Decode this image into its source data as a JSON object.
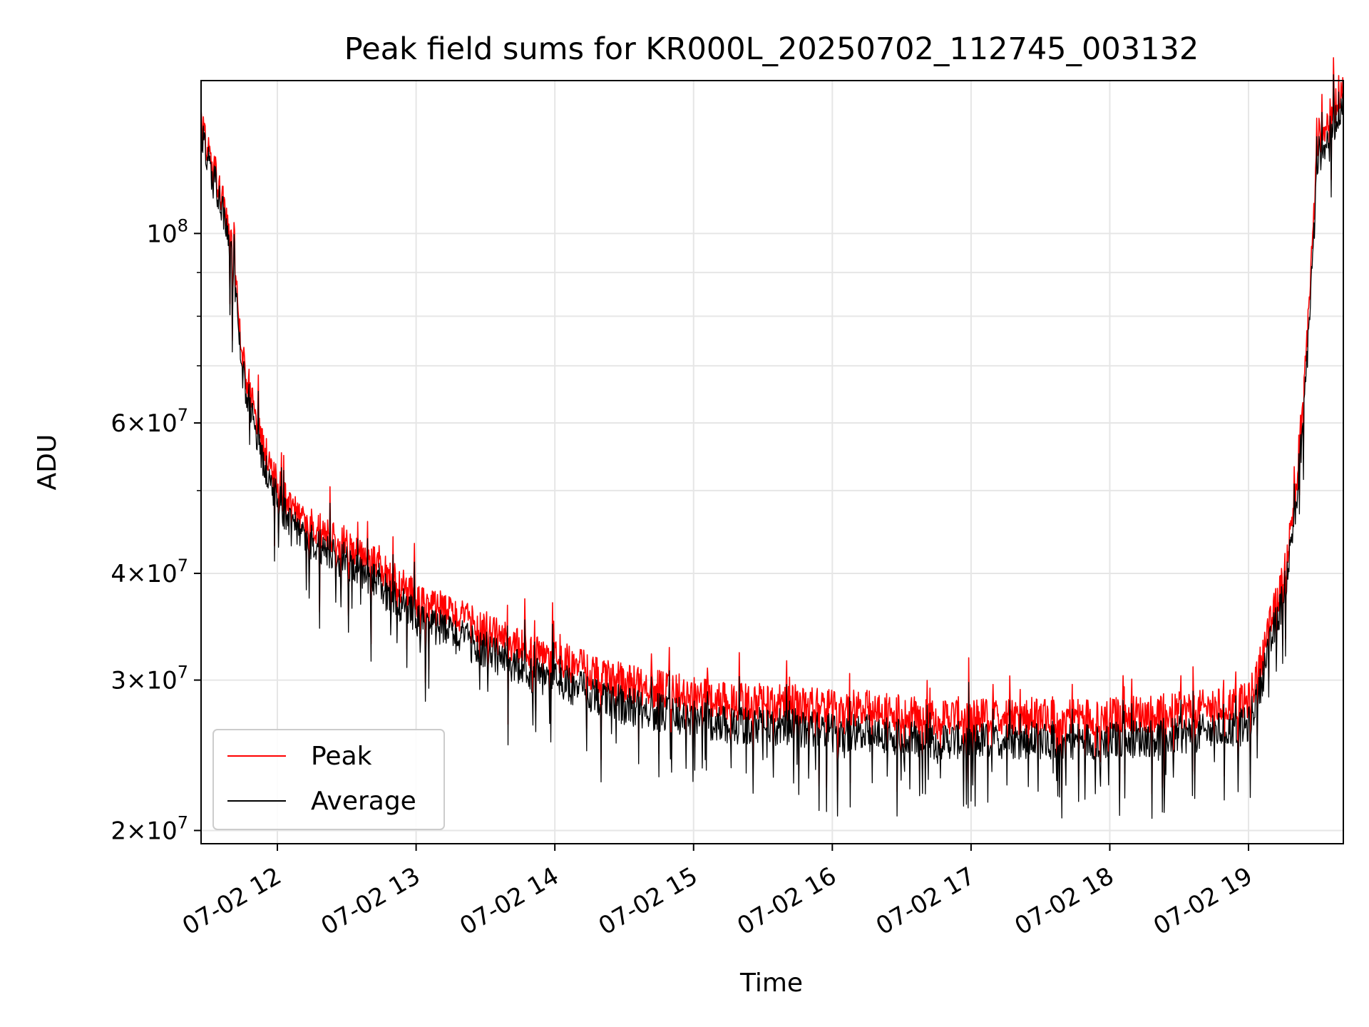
{
  "chart_data": {
    "type": "line",
    "title": "Peak field sums for KR000L_20250702_112745_003132",
    "xlabel": "Time",
    "ylabel": "ADU",
    "y_scale": "log",
    "x_range": [
      "07-02 11:27",
      "07-02 19:41"
    ],
    "ylim": [
      19300000,
      151000000
    ],
    "x_ticks": [
      {
        "time": "07-02 12:00",
        "label": "07-02 12"
      },
      {
        "time": "07-02 13:00",
        "label": "07-02 13"
      },
      {
        "time": "07-02 14:00",
        "label": "07-02 14"
      },
      {
        "time": "07-02 15:00",
        "label": "07-02 15"
      },
      {
        "time": "07-02 16:00",
        "label": "07-02 16"
      },
      {
        "time": "07-02 17:00",
        "label": "07-02 17"
      },
      {
        "time": "07-02 18:00",
        "label": "07-02 18"
      },
      {
        "time": "07-02 19:00",
        "label": "07-02 19"
      }
    ],
    "y_ticks": [
      {
        "value": 20000000,
        "coef": "2",
        "exp": "7"
      },
      {
        "value": 30000000,
        "coef": "3",
        "exp": "7"
      },
      {
        "value": 40000000,
        "coef": "4",
        "exp": "7"
      },
      {
        "value": 60000000,
        "coef": "6",
        "exp": "7"
      },
      {
        "value": 100000000,
        "base": "10",
        "exp": "8"
      }
    ],
    "y_minor_ticks": [
      50000000,
      70000000,
      80000000,
      90000000
    ],
    "grid": true,
    "legend_position": "lower-left",
    "series": [
      {
        "name": "Peak",
        "color": "#ff0000",
        "x": [
          "07-02 11:27",
          "07-02 11:31",
          "07-02 11:35",
          "07-02 11:38",
          "07-02 11:40",
          "07-02 11:42",
          "07-02 11:44",
          "07-02 11:46",
          "07-02 11:48",
          "07-02 11:51",
          "07-02 11:53",
          "07-02 11:56",
          "07-02 12:00",
          "07-02 12:05",
          "07-02 12:10",
          "07-02 12:15",
          "07-02 12:20",
          "07-02 12:25",
          "07-02 12:30",
          "07-02 12:40",
          "07-02 12:50",
          "07-02 13:00",
          "07-02 13:10",
          "07-02 13:16",
          "07-02 13:20",
          "07-02 13:30",
          "07-02 13:40",
          "07-02 13:50",
          "07-02 14:00",
          "07-02 14:15",
          "07-02 14:30",
          "07-02 14:45",
          "07-02 15:00",
          "07-02 15:20",
          "07-02 15:40",
          "07-02 16:00",
          "07-02 16:20",
          "07-02 16:40",
          "07-02 17:00",
          "07-02 17:20",
          "07-02 17:40",
          "07-02 18:00",
          "07-02 18:20",
          "07-02 18:40",
          "07-02 19:00",
          "07-02 19:05",
          "07-02 19:10",
          "07-02 19:15",
          "07-02 19:18",
          "07-02 19:21",
          "07-02 19:24",
          "07-02 19:27",
          "07-02 19:30",
          "07-02 19:35",
          "07-02 19:41"
        ],
        "values": [
          136000000,
          120000000,
          113000000,
          105000000,
          95000000,
          86000000,
          75000000,
          68000000,
          66000000,
          60000000,
          58000000,
          53000000,
          51000000,
          47000000,
          46000000,
          45000000,
          44000000,
          43000000,
          43000000,
          41000000,
          39000000,
          37000000,
          36000000,
          35500000,
          35000000,
          34000000,
          33000000,
          32000000,
          31500000,
          30500000,
          29500000,
          29000000,
          28500000,
          28000000,
          28000000,
          27500000,
          27500000,
          27000000,
          27000000,
          27000000,
          27000000,
          27000000,
          27200000,
          27500000,
          28000000,
          31000000,
          35000000,
          39000000,
          44000000,
          52000000,
          65000000,
          90000000,
          128000000,
          135000000,
          149000000
        ]
      },
      {
        "name": "Average",
        "color": "#000000",
        "x": [
          "07-02 11:27",
          "07-02 11:31",
          "07-02 11:35",
          "07-02 11:38",
          "07-02 11:40",
          "07-02 11:42",
          "07-02 11:44",
          "07-02 11:46",
          "07-02 11:48",
          "07-02 11:51",
          "07-02 11:53",
          "07-02 11:56",
          "07-02 12:00",
          "07-02 12:05",
          "07-02 12:10",
          "07-02 12:15",
          "07-02 12:20",
          "07-02 12:25",
          "07-02 12:30",
          "07-02 12:40",
          "07-02 12:50",
          "07-02 13:00",
          "07-02 13:10",
          "07-02 13:16",
          "07-02 13:20",
          "07-02 13:30",
          "07-02 13:40",
          "07-02 13:50",
          "07-02 14:00",
          "07-02 14:15",
          "07-02 14:30",
          "07-02 14:45",
          "07-02 15:00",
          "07-02 15:20",
          "07-02 15:40",
          "07-02 16:00",
          "07-02 16:20",
          "07-02 16:40",
          "07-02 17:00",
          "07-02 17:20",
          "07-02 17:40",
          "07-02 18:00",
          "07-02 18:20",
          "07-02 18:40",
          "07-02 19:00",
          "07-02 19:05",
          "07-02 19:10",
          "07-02 19:15",
          "07-02 19:18",
          "07-02 19:21",
          "07-02 19:24",
          "07-02 19:27",
          "07-02 19:30",
          "07-02 19:35",
          "07-02 19:41"
        ],
        "values": [
          134000000,
          118000000,
          111000000,
          103000000,
          93000000,
          84000000,
          73000000,
          66000000,
          64000000,
          58000000,
          56000000,
          51000000,
          49500000,
          45500000,
          44500000,
          43500000,
          42500000,
          41500000,
          41500000,
          39500000,
          37500000,
          35500000,
          34500000,
          34000000,
          33500000,
          32500000,
          31500000,
          30500000,
          30000000,
          29000000,
          28000000,
          27500000,
          27000000,
          26500000,
          26500000,
          26000000,
          26000000,
          25500000,
          25500000,
          25500000,
          25500000,
          25500000,
          25700000,
          26000000,
          26500000,
          29500000,
          33500000,
          37500000,
          42500000,
          50000000,
          62000000,
          86000000,
          123000000,
          130000000,
          144000000
        ]
      }
    ]
  }
}
